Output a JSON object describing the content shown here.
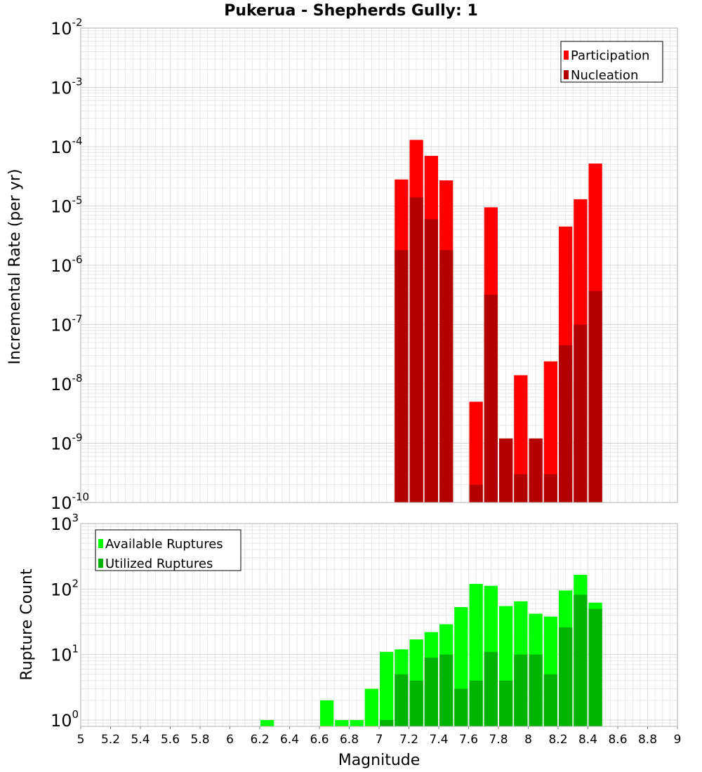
{
  "chart_data": [
    {
      "type": "bar",
      "panel": "top",
      "title": "Pukerua - Shepherds Gully: 1",
      "xlabel": "Magnitude",
      "ylabel": "Incremental Rate (per yr)",
      "yscale": "log",
      "ylim": [
        1e-10,
        0.01
      ],
      "xlim": [
        5,
        9
      ],
      "bin_width": 0.1,
      "grid": true,
      "legend_position": "top-right",
      "series": [
        {
          "name": "Participation",
          "color": "#ff0000",
          "x": [
            7.15,
            7.25,
            7.35,
            7.45,
            7.65,
            7.75,
            7.85,
            7.95,
            8.05,
            8.15,
            8.25,
            8.35,
            8.45
          ],
          "values": [
            2.8e-05,
            0.00013,
            7e-05,
            2.7e-05,
            5e-09,
            9.5e-06,
            1.2e-09,
            1.4e-08,
            1.2e-09,
            2.4e-08,
            4.5e-06,
            1.3e-05,
            5.2e-05
          ]
        },
        {
          "name": "Nucleation",
          "color": "#b30000",
          "x": [
            7.15,
            7.25,
            7.35,
            7.45,
            7.65,
            7.75,
            7.85,
            7.95,
            8.05,
            8.15,
            8.25,
            8.35,
            8.45
          ],
          "values": [
            1.8e-06,
            1.4e-05,
            6e-06,
            1.8e-06,
            2e-10,
            3.2e-07,
            1.2e-09,
            3e-10,
            1.2e-09,
            3e-10,
            4.5e-08,
            1e-07,
            3.7e-07
          ]
        }
      ]
    },
    {
      "type": "bar",
      "panel": "bottom",
      "xlabel": "Magnitude",
      "ylabel": "Rupture Count",
      "yscale": "log",
      "ylim": [
        0.8,
        1000
      ],
      "xlim": [
        5,
        9
      ],
      "bin_width": 0.1,
      "grid": true,
      "legend_position": "top-left",
      "series": [
        {
          "name": "Available Ruptures",
          "color": "#00ff00",
          "x": [
            6.25,
            6.65,
            6.75,
            6.85,
            6.95,
            7.05,
            7.15,
            7.25,
            7.35,
            7.45,
            7.55,
            7.65,
            7.75,
            7.85,
            7.95,
            8.05,
            8.15,
            8.25,
            8.35,
            8.45
          ],
          "values": [
            1,
            2,
            1,
            1,
            3,
            11,
            12,
            17,
            22,
            29,
            53,
            120,
            112,
            55,
            65,
            42,
            38,
            95,
            165,
            62
          ]
        },
        {
          "name": "Utilized Ruptures",
          "color": "#00b300",
          "x": [
            7.05,
            7.15,
            7.25,
            7.35,
            7.45,
            7.55,
            7.65,
            7.75,
            7.85,
            7.95,
            8.05,
            8.15,
            8.25,
            8.35,
            8.45
          ],
          "values": [
            1,
            5,
            4,
            9,
            10,
            3,
            4,
            11,
            4,
            10,
            10,
            5,
            26,
            82,
            50
          ]
        }
      ]
    }
  ],
  "x_ticks": [
    "5",
    "5.2",
    "5.4",
    "5.6",
    "5.8",
    "6",
    "6.2",
    "6.4",
    "6.6",
    "6.8",
    "7",
    "7.2",
    "7.4",
    "7.6",
    "7.8",
    "8",
    "8.2",
    "8.4",
    "8.6",
    "8.8",
    "9"
  ],
  "top_y_ticks": [
    {
      "exp": -2
    },
    {
      "exp": -3
    },
    {
      "exp": -4
    },
    {
      "exp": -5
    },
    {
      "exp": -6
    },
    {
      "exp": -7
    },
    {
      "exp": -8
    },
    {
      "exp": -9
    },
    {
      "exp": -10
    }
  ],
  "bottom_y_ticks": [
    {
      "exp": 3
    },
    {
      "exp": 2
    },
    {
      "exp": 1
    },
    {
      "exp": 0
    }
  ]
}
